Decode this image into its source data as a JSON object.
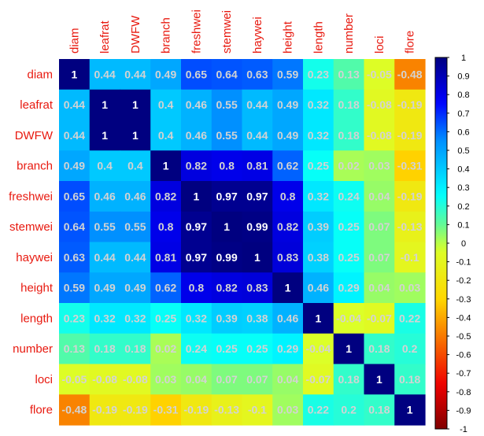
{
  "chart_data": {
    "type": "heatmap",
    "title": "",
    "variables": [
      "diam",
      "leafrat",
      "DWFW",
      "branch",
      "freshwei",
      "stemwei",
      "haywei",
      "height",
      "length",
      "number",
      "loci",
      "flore"
    ],
    "values": [
      [
        1,
        0.44,
        0.44,
        0.49,
        0.65,
        0.64,
        0.63,
        0.59,
        0.23,
        0.13,
        -0.05,
        -0.48
      ],
      [
        0.44,
        1,
        1,
        0.4,
        0.46,
        0.55,
        0.44,
        0.49,
        0.32,
        0.18,
        -0.08,
        -0.19
      ],
      [
        0.44,
        1,
        1,
        0.4,
        0.46,
        0.55,
        0.44,
        0.49,
        0.32,
        0.18,
        -0.08,
        -0.19
      ],
      [
        0.49,
        0.4,
        0.4,
        1,
        0.82,
        0.8,
        0.81,
        0.62,
        0.25,
        0.02,
        0.03,
        -0.31
      ],
      [
        0.65,
        0.46,
        0.46,
        0.82,
        1,
        0.97,
        0.97,
        0.8,
        0.32,
        0.24,
        0.04,
        -0.19
      ],
      [
        0.64,
        0.55,
        0.55,
        0.8,
        0.97,
        1,
        0.99,
        0.82,
        0.39,
        0.25,
        0.07,
        -0.13
      ],
      [
        0.63,
        0.44,
        0.44,
        0.81,
        0.97,
        0.99,
        1,
        0.83,
        0.38,
        0.25,
        0.07,
        -0.1
      ],
      [
        0.59,
        0.49,
        0.49,
        0.62,
        0.8,
        0.82,
        0.83,
        1,
        0.46,
        0.29,
        0.04,
        0.03
      ],
      [
        0.23,
        0.32,
        0.32,
        0.25,
        0.32,
        0.39,
        0.38,
        0.46,
        1,
        -0.04,
        -0.07,
        0.22
      ],
      [
        0.13,
        0.18,
        0.18,
        0.02,
        0.24,
        0.25,
        0.25,
        0.29,
        -0.04,
        1,
        0.18,
        0.2
      ],
      [
        -0.05,
        -0.08,
        -0.08,
        0.03,
        0.04,
        0.07,
        0.07,
        0.04,
        -0.07,
        0.18,
        1,
        0.18
      ],
      [
        -0.48,
        -0.19,
        -0.19,
        -0.31,
        -0.19,
        -0.13,
        -0.1,
        0.03,
        0.22,
        0.2,
        0.18,
        1
      ]
    ],
    "colorbar": {
      "range": [
        -1,
        1
      ],
      "ticks": [
        "1",
        "0.9",
        "0.8",
        "0.7",
        "0.6",
        "0.5",
        "0.4",
        "0.3",
        "0.2",
        "0.1",
        "0",
        "-0.1",
        "-0.2",
        "-0.3",
        "-0.4",
        "-0.5",
        "-0.6",
        "-0.7",
        "-0.8",
        "-0.9",
        "-1"
      ]
    },
    "label_color": "#e8190f",
    "value_label_color": "#d3d3d3"
  }
}
